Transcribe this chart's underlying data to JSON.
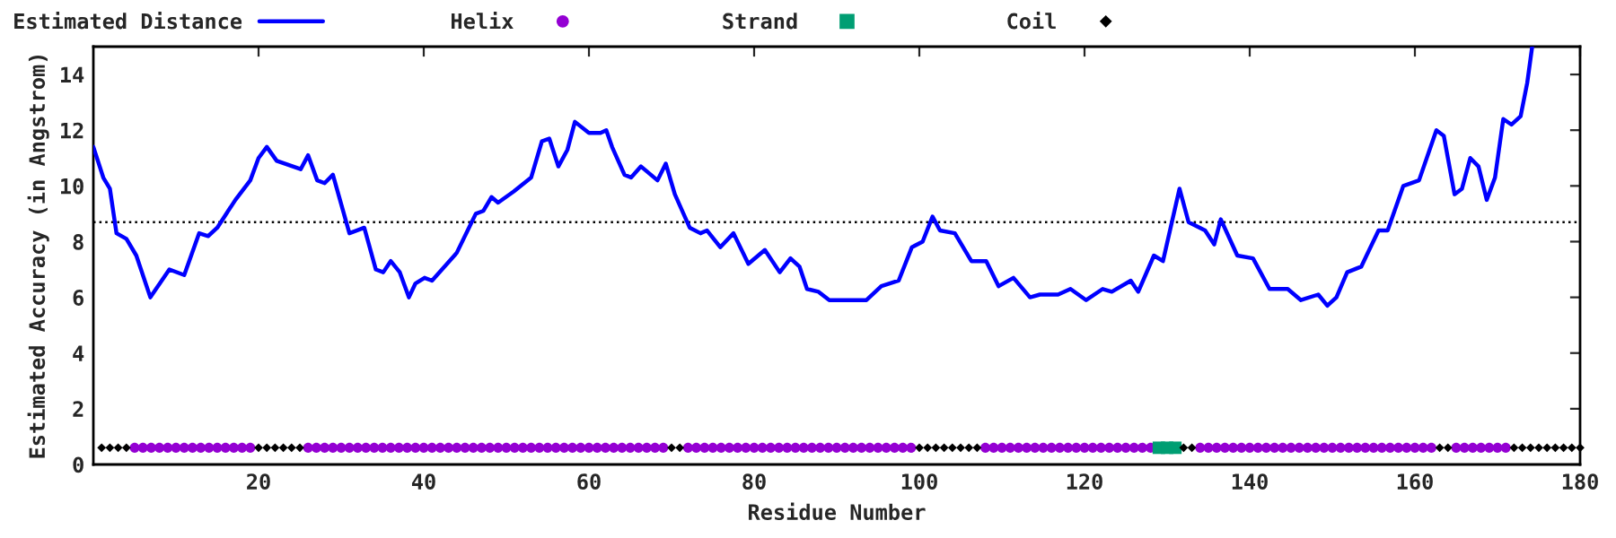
{
  "chart_data": {
    "type": "line",
    "xlabel": "Residue Number",
    "ylabel": "Estimated Accuracy (in Angstrom)",
    "xlim": [
      0,
      180
    ],
    "xticks": [
      20,
      40,
      60,
      80,
      100,
      120,
      140,
      160,
      180
    ],
    "ylim": [
      0,
      15
    ],
    "yticks": [
      0,
      2,
      4,
      6,
      8,
      10,
      12,
      14
    ],
    "grid": false,
    "legend": "top",
    "ref_lines": [
      {
        "axis": "y",
        "value": 8.7,
        "color": "#000000",
        "line_style": "dotted"
      }
    ],
    "series": [
      {
        "name": "Estimated Distance",
        "color": "#0000ff",
        "marker": "none",
        "x": [
          0,
          1.2,
          2,
          2.8,
          4,
          5.2,
          6.9,
          9.2,
          11,
          12.8,
          13.9,
          15,
          17.2,
          19,
          20,
          21,
          22.2,
          25.1,
          26,
          27.1,
          28,
          29,
          31,
          32.8,
          34.2,
          35.1,
          36,
          37.1,
          38.2,
          39,
          40.1,
          41,
          44,
          46.3,
          47.2,
          48.2,
          49,
          50.9,
          53,
          54.3,
          55.2,
          56.3,
          57.4,
          58.3,
          60,
          61.4,
          62.1,
          62.8,
          64.3,
          65.1,
          66.3,
          68.3,
          69.3,
          70.4,
          72.2,
          73.5,
          74.3,
          75.9,
          77.5,
          79.3,
          81.3,
          83.1,
          84.4,
          85.5,
          86.4,
          87.8,
          89.1,
          93.6,
          95.4,
          97.5,
          99.1,
          100.4,
          101.6,
          102.5,
          104.3,
          106.3,
          108.1,
          109.6,
          111.4,
          113.4,
          114.6,
          116.8,
          118.3,
          120.2,
          122.2,
          123.3,
          125.6,
          126.5,
          128.4,
          129.5,
          131.5,
          132.6,
          134.6,
          135.7,
          136.5,
          138.5,
          140.4,
          142.4,
          144.6,
          146.2,
          148.3,
          149.4,
          150.5,
          151.8,
          153.5,
          155.6,
          156.7,
          158.6,
          160.5,
          162.6,
          163.5,
          164.8,
          165.7,
          166.7,
          167.7,
          168.7,
          169.7,
          170.7,
          171.7,
          172.8,
          173.6,
          174.2
        ],
        "values": [
          11.4,
          10.3,
          9.9,
          8.3,
          8.1,
          7.5,
          6.0,
          7.0,
          6.8,
          8.3,
          8.2,
          8.5,
          9.5,
          10.2,
          11.0,
          11.4,
          10.9,
          10.6,
          11.1,
          10.2,
          10.1,
          10.4,
          8.3,
          8.5,
          7.0,
          6.9,
          7.3,
          6.9,
          6.0,
          6.5,
          6.7,
          6.6,
          7.6,
          9.0,
          9.1,
          9.6,
          9.4,
          9.8,
          10.3,
          11.6,
          11.7,
          10.7,
          11.3,
          12.3,
          11.9,
          11.9,
          12.0,
          11.4,
          10.4,
          10.3,
          10.7,
          10.2,
          10.8,
          9.7,
          8.5,
          8.3,
          8.4,
          7.8,
          8.3,
          7.2,
          7.7,
          6.9,
          7.4,
          7.1,
          6.3,
          6.2,
          5.9,
          5.9,
          6.4,
          6.6,
          7.8,
          8.0,
          8.9,
          8.4,
          8.3,
          7.3,
          7.3,
          6.4,
          6.7,
          6.0,
          6.1,
          6.1,
          6.3,
          5.9,
          6.3,
          6.2,
          6.6,
          6.2,
          7.5,
          7.3,
          9.9,
          8.7,
          8.4,
          7.9,
          8.8,
          7.5,
          7.4,
          6.3,
          6.3,
          5.9,
          6.1,
          5.7,
          6.0,
          6.9,
          7.1,
          8.4,
          8.4,
          10.0,
          10.2,
          12.0,
          11.8,
          9.7,
          9.9,
          11.0,
          10.7,
          9.5,
          10.3,
          12.4,
          12.2,
          12.5,
          13.7,
          15.0
        ]
      },
      {
        "name": "Helix",
        "type": "scatter",
        "color": "#9400d3",
        "marker": "circle",
        "x": [
          5,
          6,
          7,
          8,
          9,
          10,
          11,
          12,
          13,
          14,
          15,
          16,
          17,
          18,
          19,
          26,
          27,
          28,
          29,
          30,
          31,
          32,
          33,
          34,
          35,
          36,
          37,
          38,
          39,
          40,
          41,
          42,
          43,
          44,
          45,
          46,
          47,
          48,
          49,
          50,
          51,
          52,
          53,
          54,
          55,
          56,
          57,
          58,
          59,
          60,
          61,
          62,
          63,
          64,
          65,
          66,
          67,
          68,
          69,
          72,
          73,
          74,
          75,
          76,
          77,
          78,
          79,
          80,
          81,
          82,
          83,
          84,
          85,
          86,
          87,
          88,
          89,
          90,
          91,
          92,
          93,
          94,
          95,
          96,
          97,
          98,
          99,
          108,
          109,
          110,
          111,
          112,
          113,
          114,
          115,
          116,
          117,
          118,
          119,
          120,
          121,
          122,
          123,
          124,
          125,
          126,
          127,
          128,
          134,
          135,
          136,
          137,
          138,
          139,
          140,
          141,
          142,
          143,
          144,
          145,
          146,
          147,
          148,
          149,
          150,
          151,
          152,
          153,
          154,
          155,
          156,
          157,
          158,
          159,
          160,
          161,
          162,
          165,
          166,
          167,
          168,
          169,
          170,
          171
        ],
        "values": [
          0.6,
          0.6,
          0.6,
          0.6,
          0.6,
          0.6,
          0.6,
          0.6,
          0.6,
          0.6,
          0.6,
          0.6,
          0.6,
          0.6,
          0.6,
          0.6,
          0.6,
          0.6,
          0.6,
          0.6,
          0.6,
          0.6,
          0.6,
          0.6,
          0.6,
          0.6,
          0.6,
          0.6,
          0.6,
          0.6,
          0.6,
          0.6,
          0.6,
          0.6,
          0.6,
          0.6,
          0.6,
          0.6,
          0.6,
          0.6,
          0.6,
          0.6,
          0.6,
          0.6,
          0.6,
          0.6,
          0.6,
          0.6,
          0.6,
          0.6,
          0.6,
          0.6,
          0.6,
          0.6,
          0.6,
          0.6,
          0.6,
          0.6,
          0.6,
          0.6,
          0.6,
          0.6,
          0.6,
          0.6,
          0.6,
          0.6,
          0.6,
          0.6,
          0.6,
          0.6,
          0.6,
          0.6,
          0.6,
          0.6,
          0.6,
          0.6,
          0.6,
          0.6,
          0.6,
          0.6,
          0.6,
          0.6,
          0.6,
          0.6,
          0.6,
          0.6,
          0.6,
          0.6,
          0.6,
          0.6,
          0.6,
          0.6,
          0.6,
          0.6,
          0.6,
          0.6,
          0.6,
          0.6,
          0.6,
          0.6,
          0.6,
          0.6,
          0.6,
          0.6,
          0.6,
          0.6,
          0.6,
          0.6,
          0.6,
          0.6,
          0.6,
          0.6,
          0.6,
          0.6,
          0.6,
          0.6,
          0.6,
          0.6,
          0.6,
          0.6,
          0.6,
          0.6,
          0.6,
          0.6,
          0.6,
          0.6,
          0.6,
          0.6,
          0.6,
          0.6,
          0.6,
          0.6,
          0.6,
          0.6,
          0.6,
          0.6,
          0.6,
          0.6,
          0.6,
          0.6,
          0.6,
          0.6,
          0.6,
          0.6
        ]
      },
      {
        "name": "Strand",
        "type": "scatter",
        "color": "#009e73",
        "marker": "square",
        "x": [
          129,
          130,
          131
        ],
        "values": [
          0.6,
          0.6,
          0.6
        ]
      },
      {
        "name": "Coil",
        "type": "scatter",
        "color": "#000000",
        "marker": "diamond",
        "x": [
          1,
          2,
          3,
          4,
          20,
          21,
          22,
          23,
          24,
          25,
          70,
          71,
          100,
          101,
          102,
          103,
          104,
          105,
          106,
          107,
          132,
          133,
          163,
          164,
          172,
          173,
          174,
          175,
          176,
          177,
          178,
          179,
          180
        ],
        "values": [
          0.6,
          0.6,
          0.6,
          0.6,
          0.6,
          0.6,
          0.6,
          0.6,
          0.6,
          0.6,
          0.6,
          0.6,
          0.6,
          0.6,
          0.6,
          0.6,
          0.6,
          0.6,
          0.6,
          0.6,
          0.6,
          0.6,
          0.6,
          0.6,
          0.6,
          0.6,
          0.6,
          0.6,
          0.6,
          0.6,
          0.6,
          0.6,
          0.6
        ]
      }
    ]
  }
}
